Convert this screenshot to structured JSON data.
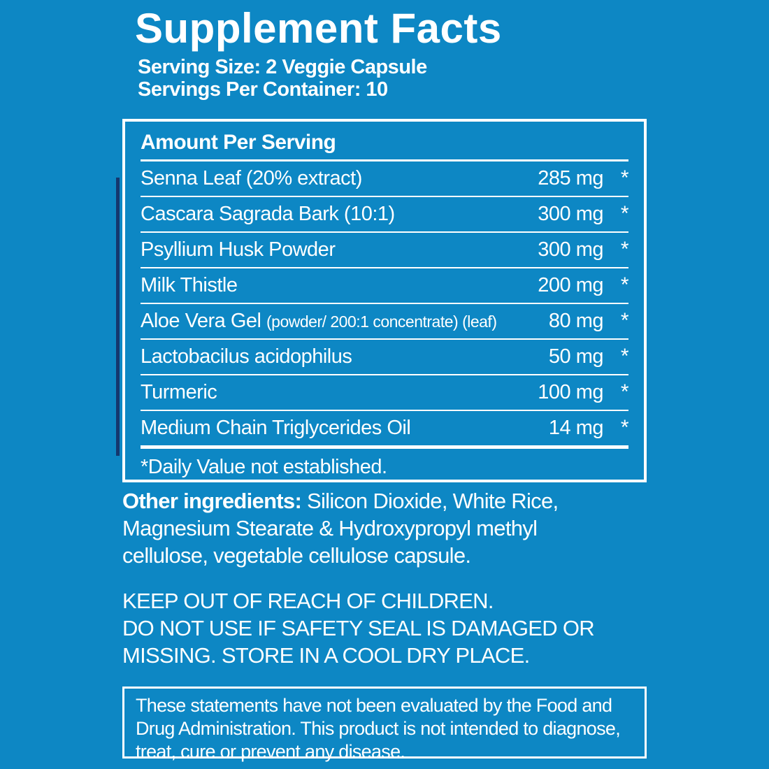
{
  "colors": {
    "background": "#0d87c4",
    "text": "#ffffff",
    "accent_line_navy": "#15376e",
    "border": "#ffffff"
  },
  "header": {
    "title": "Supplement Facts",
    "serving_size": "Serving Size: 2 Veggie Capsule",
    "servings_per_container": "Servings Per Container: 10"
  },
  "table": {
    "header": "Amount Per Serving",
    "rows": [
      {
        "name": "Senna Leaf (20% extract)",
        "note": "",
        "amount": "285 mg",
        "dv": "*"
      },
      {
        "name": "Cascara Sagrada Bark (10:1)",
        "note": "",
        "amount": "300 mg",
        "dv": "*"
      },
      {
        "name": "Psyllium Husk Powder",
        "note": "",
        "amount": "300 mg",
        "dv": "*"
      },
      {
        "name": "Milk Thistle",
        "note": "",
        "amount": "200 mg",
        "dv": "*"
      },
      {
        "name": "Aloe Vera Gel",
        "note": "(powder/ 200:1 concentrate) (leaf)",
        "amount": "80 mg",
        "dv": "*"
      },
      {
        "name": "Lactobacilus acidophilus",
        "note": "",
        "amount": "50 mg",
        "dv": "*"
      },
      {
        "name": "Turmeric",
        "note": "",
        "amount": "100 mg",
        "dv": "*"
      },
      {
        "name": "Medium Chain Triglycerides Oil",
        "note": "",
        "amount": "14 mg",
        "dv": "*"
      }
    ],
    "footnote": "*Daily Value not established."
  },
  "other_ingredients": {
    "label": "Other ingredients:",
    "line1_rest": " Silicon Dioxide, White Rice,",
    "line2": "Magnesium Stearate & Hydroxypropyl methyl",
    "line3": "cellulose, vegetable cellulose capsule."
  },
  "warnings": {
    "line1": "KEEP OUT OF REACH OF CHILDREN.",
    "line2": "DO NOT USE IF SAFETY SEAL IS DAMAGED OR",
    "line3": "MISSING. STORE IN A COOL DRY PLACE."
  },
  "disclaimer": {
    "line1": "These statements have not been evaluated by the Food and",
    "line2": "Drug Administration. This product is not intended to diagnose,",
    "line3": "treat, cure or prevent any disease."
  }
}
